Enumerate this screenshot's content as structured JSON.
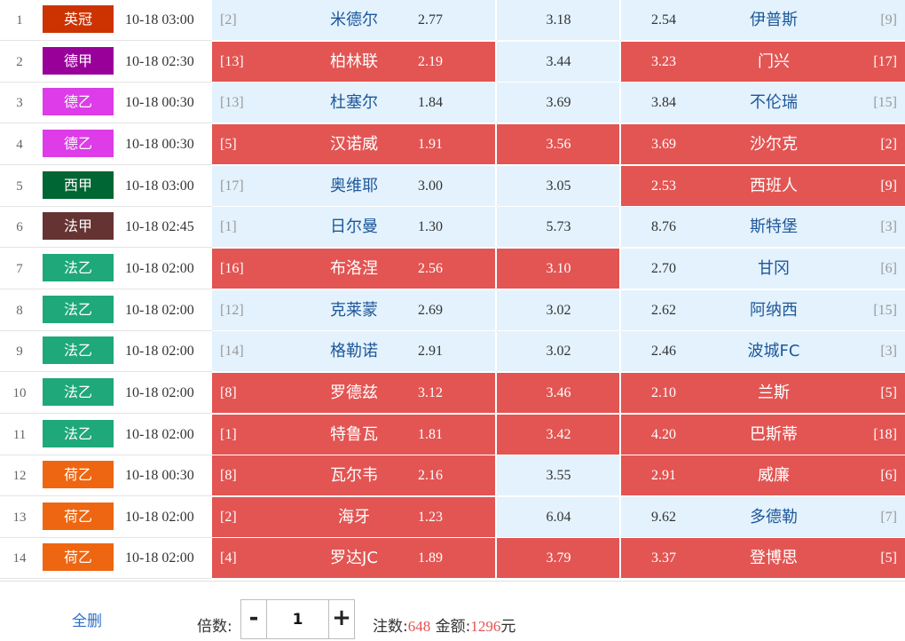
{
  "colors": {
    "selected": "#e25553",
    "unselected": "#e3f2fd",
    "league": {
      "英冠": "#cc3300",
      "德甲": "#990099",
      "德乙": "#dd3ce8",
      "西甲": "#006633",
      "法甲": "#663333",
      "法乙": "#1fa87a",
      "荷乙": "#ee6611"
    }
  },
  "matches": [
    {
      "no": "1",
      "league": "英冠",
      "time": "10-18 03:00",
      "home_rank": "[2]",
      "home": "米德尔",
      "odds_win": "2.77",
      "odds_draw": "3.18",
      "odds_loss": "2.54",
      "away": "伊普斯",
      "away_rank": "[9]",
      "sel_home": false,
      "sel_draw": false,
      "sel_away": false
    },
    {
      "no": "2",
      "league": "德甲",
      "time": "10-18 02:30",
      "home_rank": "[13]",
      "home": "柏林联",
      "odds_win": "2.19",
      "odds_draw": "3.44",
      "odds_loss": "3.23",
      "away": "门兴",
      "away_rank": "[17]",
      "sel_home": true,
      "sel_draw": false,
      "sel_away": true
    },
    {
      "no": "3",
      "league": "德乙",
      "time": "10-18 00:30",
      "home_rank": "[13]",
      "home": "杜塞尔",
      "odds_win": "1.84",
      "odds_draw": "3.69",
      "odds_loss": "3.84",
      "away": "不伦瑞",
      "away_rank": "[15]",
      "sel_home": false,
      "sel_draw": false,
      "sel_away": false
    },
    {
      "no": "4",
      "league": "德乙",
      "time": "10-18 00:30",
      "home_rank": "[5]",
      "home": "汉诺威",
      "odds_win": "1.91",
      "odds_draw": "3.56",
      "odds_loss": "3.69",
      "away": "沙尔克",
      "away_rank": "[2]",
      "sel_home": true,
      "sel_draw": true,
      "sel_away": true
    },
    {
      "no": "5",
      "league": "西甲",
      "time": "10-18 03:00",
      "home_rank": "[17]",
      "home": "奥维耶",
      "odds_win": "3.00",
      "odds_draw": "3.05",
      "odds_loss": "2.53",
      "away": "西班人",
      "away_rank": "[9]",
      "sel_home": false,
      "sel_draw": false,
      "sel_away": true
    },
    {
      "no": "6",
      "league": "法甲",
      "time": "10-18 02:45",
      "home_rank": "[1]",
      "home": "日尔曼",
      "odds_win": "1.30",
      "odds_draw": "5.73",
      "odds_loss": "8.76",
      "away": "斯特堡",
      "away_rank": "[3]",
      "sel_home": false,
      "sel_draw": false,
      "sel_away": false
    },
    {
      "no": "7",
      "league": "法乙",
      "time": "10-18 02:00",
      "home_rank": "[16]",
      "home": "布洛涅",
      "odds_win": "2.56",
      "odds_draw": "3.10",
      "odds_loss": "2.70",
      "away": "甘冈",
      "away_rank": "[6]",
      "sel_home": true,
      "sel_draw": true,
      "sel_away": false
    },
    {
      "no": "8",
      "league": "法乙",
      "time": "10-18 02:00",
      "home_rank": "[12]",
      "home": "克莱蒙",
      "odds_win": "2.69",
      "odds_draw": "3.02",
      "odds_loss": "2.62",
      "away": "阿纳西",
      "away_rank": "[15]",
      "sel_home": false,
      "sel_draw": false,
      "sel_away": false
    },
    {
      "no": "9",
      "league": "法乙",
      "time": "10-18 02:00",
      "home_rank": "[14]",
      "home": "格勒诺",
      "odds_win": "2.91",
      "odds_draw": "3.02",
      "odds_loss": "2.46",
      "away": "波城FC",
      "away_rank": "[3]",
      "sel_home": false,
      "sel_draw": false,
      "sel_away": false
    },
    {
      "no": "10",
      "league": "法乙",
      "time": "10-18 02:00",
      "home_rank": "[8]",
      "home": "罗德兹",
      "odds_win": "3.12",
      "odds_draw": "3.46",
      "odds_loss": "2.10",
      "away": "兰斯",
      "away_rank": "[5]",
      "sel_home": true,
      "sel_draw": true,
      "sel_away": true
    },
    {
      "no": "11",
      "league": "法乙",
      "time": "10-18 02:00",
      "home_rank": "[1]",
      "home": "特鲁瓦",
      "odds_win": "1.81",
      "odds_draw": "3.42",
      "odds_loss": "4.20",
      "away": "巴斯蒂",
      "away_rank": "[18]",
      "sel_home": true,
      "sel_draw": true,
      "sel_away": true
    },
    {
      "no": "12",
      "league": "荷乙",
      "time": "10-18 00:30",
      "home_rank": "[8]",
      "home": "瓦尔韦",
      "odds_win": "2.16",
      "odds_draw": "3.55",
      "odds_loss": "2.91",
      "away": "威廉",
      "away_rank": "[6]",
      "sel_home": true,
      "sel_draw": false,
      "sel_away": true
    },
    {
      "no": "13",
      "league": "荷乙",
      "time": "10-18 02:00",
      "home_rank": "[2]",
      "home": "海牙",
      "odds_win": "1.23",
      "odds_draw": "6.04",
      "odds_loss": "9.62",
      "away": "多德勒",
      "away_rank": "[7]",
      "sel_home": true,
      "sel_draw": false,
      "sel_away": false
    },
    {
      "no": "14",
      "league": "荷乙",
      "time": "10-18 02:00",
      "home_rank": "[4]",
      "home": "罗达JC",
      "odds_win": "1.89",
      "odds_draw": "3.79",
      "odds_loss": "3.37",
      "away": "登博思",
      "away_rank": "[5]",
      "sel_home": true,
      "sel_draw": true,
      "sel_away": true
    }
  ],
  "footer": {
    "clear_label": "全删",
    "multiplier_label": "倍数:",
    "minus_label": "-",
    "plus_label": "+",
    "multiplier_value": "1",
    "bets_label": "注数:",
    "bets_value": "648",
    "amount_label": "金额:",
    "amount_value": "1296",
    "currency": "元"
  }
}
